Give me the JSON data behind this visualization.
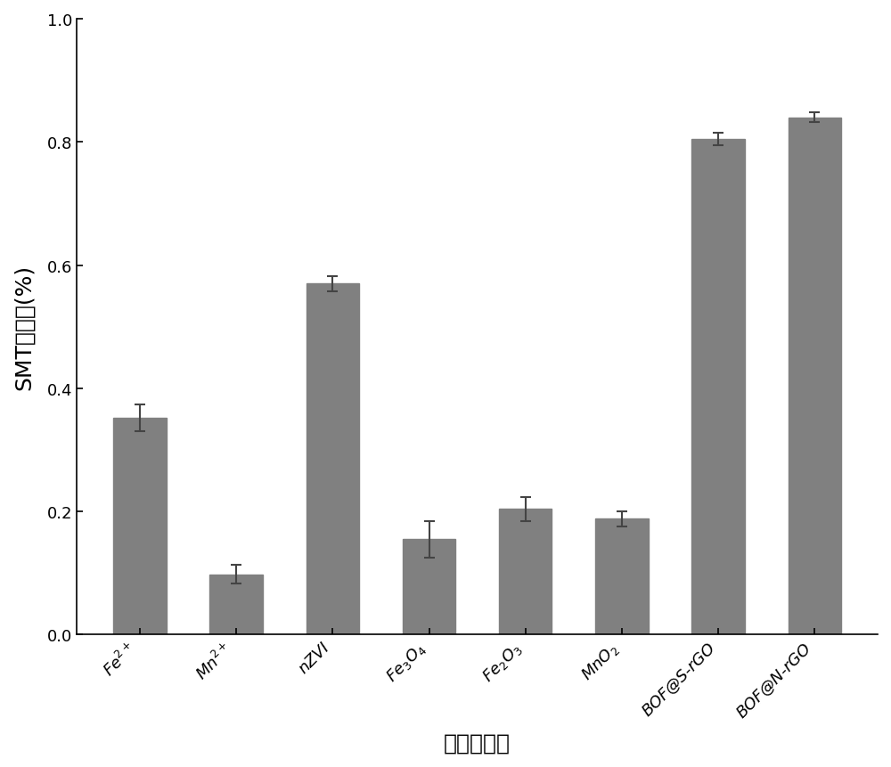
{
  "categories": [
    "Fe$^{2+}$",
    "Mn$^{2+}$",
    "nZVI",
    "Fe$_3$O$_4$",
    "Fe$_2$O$_3$",
    "MnO$_2$",
    "BOF@S-rGO",
    "BOF@N-rGO"
  ],
  "values": [
    0.352,
    0.098,
    0.57,
    0.155,
    0.204,
    0.188,
    0.805,
    0.84
  ],
  "errors": [
    0.022,
    0.015,
    0.012,
    0.03,
    0.02,
    0.012,
    0.01,
    0.008
  ],
  "bar_color": "#808080",
  "xlabel": "催化剂种类",
  "ylabel": "SMT去除率(%)",
  "ylim": [
    0.0,
    1.0
  ],
  "yticks": [
    0.0,
    0.2,
    0.4,
    0.6,
    0.8,
    1.0
  ],
  "bar_width": 0.55,
  "figsize": [
    10.0,
    8.62
  ],
  "dpi": 100,
  "xlabel_fontsize": 18,
  "ylabel_fontsize": 18,
  "tick_fontsize": 13,
  "spine_linewidth": 1.2,
  "capsize": 4,
  "ecolor": "#444444",
  "elinewidth": 1.5
}
